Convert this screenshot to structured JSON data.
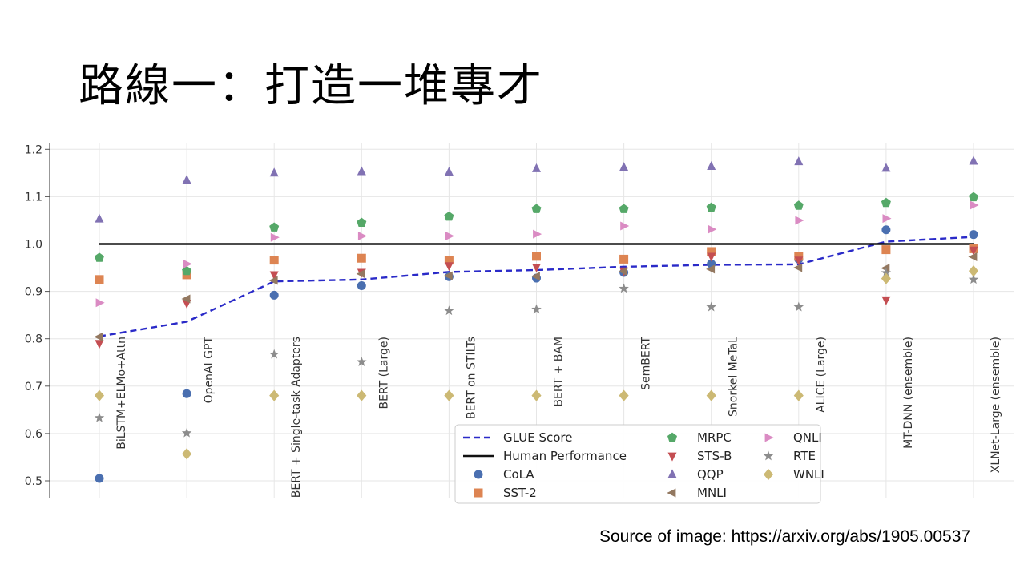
{
  "slide": {
    "title": "路線一：打造一堆專才",
    "source": "Source of image: https://arxiv.org/abs/1905.00537"
  },
  "chart_data": {
    "type": "scatter",
    "title": "",
    "xlabel": "",
    "ylabel": "",
    "ylim": [
      0.48,
      1.22
    ],
    "yticks": [
      "0.5",
      "0.6",
      "0.7",
      "0.8",
      "0.9",
      "1.0",
      "1.1",
      "1.2"
    ],
    "grid": true,
    "legend_position": "bottom-center",
    "categories": [
      "BiLSTM+ELMo+Attn",
      "OpenAI GPT",
      "BERT + Single-task Adapters",
      "BERT (Large)",
      "BERT on STILTs",
      "BERT + BAM",
      "SemBERT",
      "Snorkel MeTaL",
      "ALICE (Large)",
      "MT-DNN (ensemble)",
      "XLNet-Large (ensemble)"
    ],
    "lines": [
      {
        "name": "GLUE Score",
        "style": "dashed",
        "color": "#2a2ac8",
        "values": [
          0.805,
          0.836,
          0.921,
          0.925,
          0.941,
          0.945,
          0.952,
          0.956,
          0.957,
          1.005,
          1.015
        ]
      },
      {
        "name": "Human Performance",
        "style": "solid",
        "color": "#111111",
        "values": [
          1.0,
          1.0,
          1.0,
          1.0,
          1.0,
          1.0,
          1.0,
          1.0,
          1.0,
          1.0,
          1.0
        ]
      }
    ],
    "series": [
      {
        "name": "CoLA",
        "marker": "circle",
        "color": "#4a6fb0",
        "values": [
          0.505,
          0.684,
          0.892,
          0.912,
          0.931,
          0.928,
          0.94,
          0.958,
          0.968,
          1.03,
          1.02
        ]
      },
      {
        "name": "SST-2",
        "marker": "square",
        "color": "#dd8452",
        "values": [
          0.925,
          0.935,
          0.966,
          0.97,
          0.966,
          0.974,
          0.968,
          0.984,
          0.974,
          0.988,
          0.99
        ]
      },
      {
        "name": "MRPC",
        "marker": "pentagon",
        "color": "#55a868",
        "values": [
          0.971,
          0.943,
          1.035,
          1.045,
          1.058,
          1.074,
          1.074,
          1.077,
          1.081,
          1.087,
          1.099
        ]
      },
      {
        "name": "STS-B",
        "marker": "triangle-down",
        "color": "#c44e52",
        "values": [
          0.79,
          0.875,
          0.935,
          0.94,
          0.954,
          0.951,
          0.943,
          0.974,
          0.966,
          0.882,
          0.987
        ]
      },
      {
        "name": "QQP",
        "marker": "triangle-up",
        "color": "#8172b3",
        "values": [
          1.053,
          1.135,
          1.15,
          1.153,
          1.152,
          1.159,
          1.162,
          1.164,
          1.174,
          1.16,
          1.175
        ]
      },
      {
        "name": "MNLI",
        "marker": "triangle-left",
        "color": "#937860",
        "values": [
          0.804,
          0.884,
          0.923,
          0.937,
          0.933,
          0.932,
          0.942,
          0.947,
          0.95,
          0.949,
          0.973
        ]
      },
      {
        "name": "QNLI",
        "marker": "triangle-right",
        "color": "#da8bc3",
        "values": [
          0.876,
          0.958,
          1.014,
          1.017,
          1.017,
          1.021,
          1.038,
          1.031,
          1.05,
          1.054,
          1.082
        ]
      },
      {
        "name": "RTE",
        "marker": "star",
        "color": "#8c8c8c",
        "values": [
          0.633,
          0.601,
          0.767,
          0.751,
          0.859,
          0.862,
          0.906,
          0.867,
          0.867,
          0.939,
          0.925
        ]
      },
      {
        "name": "WNLI",
        "marker": "diamond",
        "color": "#ccb974",
        "values": [
          0.68,
          0.557,
          0.68,
          0.68,
          0.68,
          0.68,
          0.68,
          0.68,
          0.68,
          0.927,
          0.943
        ]
      }
    ]
  }
}
